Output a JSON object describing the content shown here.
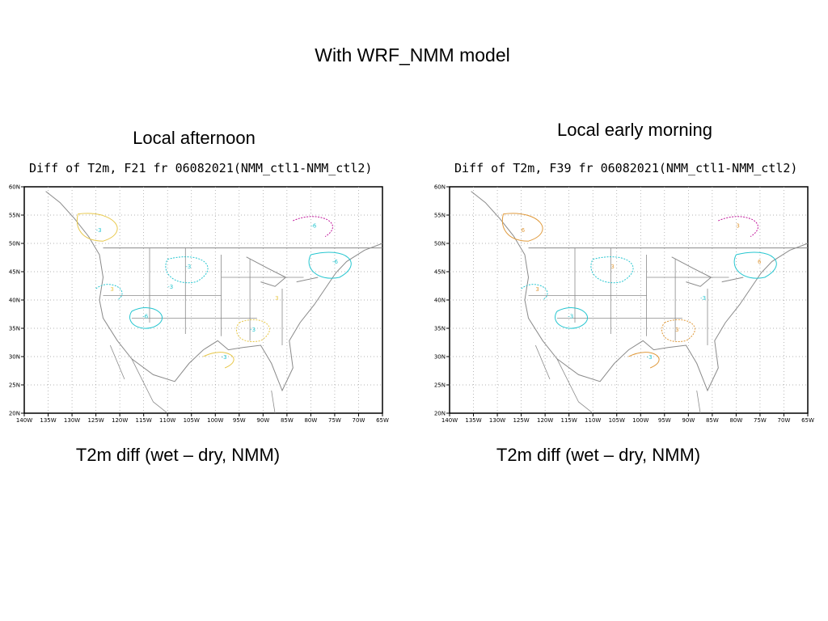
{
  "slide": {
    "title": "With WRF_NMM model",
    "left_label": "Local afternoon",
    "right_label": "Local early morning",
    "left_caption": "T2m diff (wet – dry, NMM)",
    "right_caption": "T2m diff (wet – dry, NMM)"
  },
  "maps": [
    {
      "title": "Diff of T2m, F21 fr 06082021(NMM_ctl1-NMM_ctl2)",
      "lat_ticks": [
        "60N",
        "55N",
        "50N",
        "45N",
        "40N",
        "35N",
        "30N",
        "25N",
        "20N"
      ],
      "lon_ticks": [
        "140W",
        "135W",
        "130W",
        "125W",
        "120W",
        "115W",
        "110W",
        "105W",
        "100W",
        "95W",
        "90W",
        "85W",
        "80W",
        "75W",
        "70W",
        "65W"
      ],
      "contour_colors": {
        "positive": "#e8c84a",
        "negative": "#26c6d0",
        "strong": "#c0179a"
      },
      "contour_labels": [
        "-3",
        "-3",
        "-6",
        "-3",
        "-6",
        "3",
        "-3",
        "-6",
        "3",
        "-3"
      ]
    },
    {
      "title": "Diff of T2m, F39 fr 06082021(NMM_ctl1-NMM_ctl2)",
      "lat_ticks": [
        "60N",
        "55N",
        "50N",
        "45N",
        "40N",
        "35N",
        "30N",
        "25N",
        "20N"
      ],
      "lon_ticks": [
        "140W",
        "135W",
        "130W",
        "125W",
        "120W",
        "115W",
        "110W",
        "105W",
        "100W",
        "95W",
        "90W",
        "85W",
        "80W",
        "75W",
        "70W",
        "65W"
      ],
      "contour_colors": {
        "positive": "#e09a3c",
        "negative": "#26c6d0",
        "strong": "#c0179a"
      },
      "contour_labels": [
        "6",
        "3",
        "-3",
        "3",
        "6",
        "3",
        "-3",
        "3",
        "-3"
      ]
    }
  ]
}
